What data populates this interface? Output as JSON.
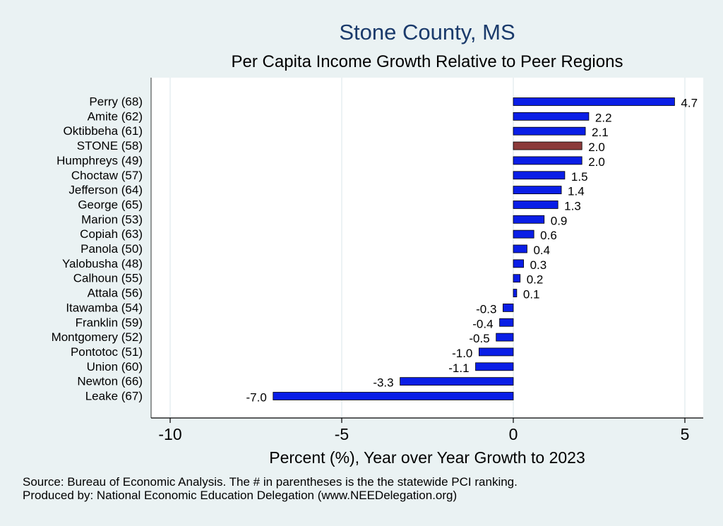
{
  "chart_data": {
    "type": "bar",
    "orientation": "horizontal",
    "title": "Stone County, MS",
    "subtitle": "Per Capita Income Growth Relative to Peer Regions",
    "xlabel": "Percent (%), Year over Year Growth to 2023",
    "ylabel": "",
    "xlim": [
      -10.5,
      5.5
    ],
    "xticks": [
      -10,
      -5,
      0,
      5
    ],
    "xtick_labels": [
      "-10",
      "-5",
      "0",
      "5"
    ],
    "grid": true,
    "categories": [
      "Perry (68)",
      "Amite (62)",
      "Oktibbeha (61)",
      "STONE (58)",
      "Humphreys (49)",
      "Choctaw (57)",
      "Jefferson (64)",
      "George (65)",
      "Marion (53)",
      "Copiah (63)",
      "Panola (50)",
      "Yalobusha (48)",
      "Calhoun (55)",
      "Attala (56)",
      "Itawamba (54)",
      "Franklin (59)",
      "Montgomery (52)",
      "Pontotoc (51)",
      "Union (60)",
      "Newton (66)",
      "Leake (67)"
    ],
    "values": [
      4.7,
      2.2,
      2.1,
      2.0,
      2.0,
      1.5,
      1.4,
      1.3,
      0.9,
      0.6,
      0.4,
      0.3,
      0.2,
      0.1,
      -0.3,
      -0.4,
      -0.5,
      -1.0,
      -1.1,
      -3.3,
      -7.0
    ],
    "value_labels": [
      "4.7",
      "2.2",
      "2.1",
      "2.0",
      "2.0",
      "1.5",
      "1.4",
      "1.3",
      "0.9",
      "0.6",
      "0.4",
      "0.3",
      "0.2",
      "0.1",
      "-0.3",
      "-0.4",
      "-0.5",
      "-1.0",
      "-1.1",
      "-3.3",
      "-7.0"
    ],
    "highlight": "STONE (58)",
    "colors": {
      "bar": "#0a1ee6",
      "highlight": "#8b3a3a",
      "bar_edge": "#000000",
      "title": "#1a3a6b",
      "background": "#eaf2f3",
      "plot_bg": "#ffffff",
      "grid": "#e6eef0"
    }
  },
  "footer": {
    "source": "Source: Bureau of Economic Analysis. The # in parentheses is the the statewide PCI ranking.",
    "produced_by": "Produced by: National Economic Education Delegation (www.NEEDelegation.org)"
  }
}
